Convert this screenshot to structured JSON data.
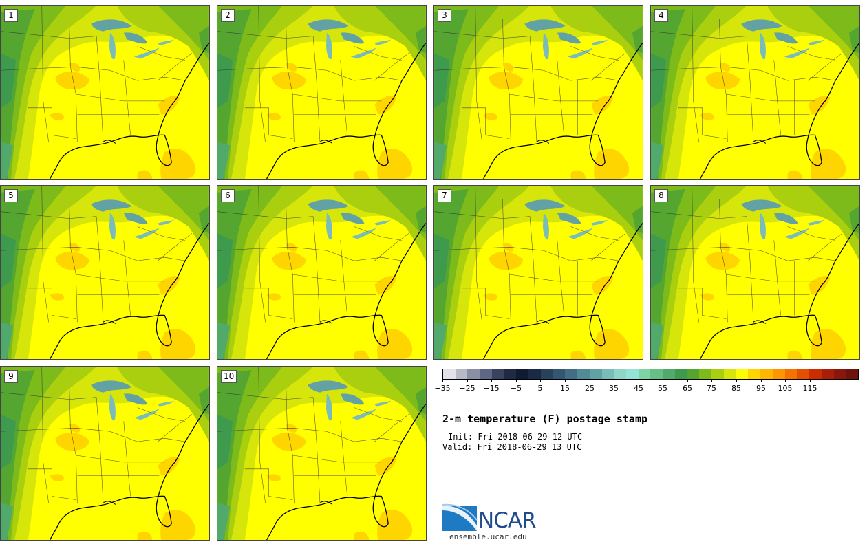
{
  "panels": [
    {
      "number": "1"
    },
    {
      "number": "2"
    },
    {
      "number": "3"
    },
    {
      "number": "4"
    },
    {
      "number": "5"
    },
    {
      "number": "6"
    },
    {
      "number": "7"
    },
    {
      "number": "8"
    },
    {
      "number": "9"
    },
    {
      "number": "10"
    }
  ],
  "colorbar": {
    "colors": [
      "#e2e2e8",
      "#b7b9c6",
      "#8a8fa6",
      "#5f6786",
      "#39425f",
      "#1f2a45",
      "#0f1b33",
      "#1a2a45",
      "#28415c",
      "#335772",
      "#416e85",
      "#528a95",
      "#62a2a5",
      "#79bcba",
      "#8fd6c8",
      "#93e4d4",
      "#7fd4a6",
      "#68bf86",
      "#52a96c",
      "#3e9a4c",
      "#55a630",
      "#7dbb1b",
      "#aacf0f",
      "#d7e60a",
      "#fcfc05",
      "#ffd500",
      "#ffb600",
      "#ff9500",
      "#f57100",
      "#e44f00",
      "#cc2d00",
      "#a81e0a",
      "#8a170c",
      "#6d130c"
    ],
    "tick_labels": [
      "−35",
      "−25",
      "−15",
      "−5",
      "5",
      "15",
      "25",
      "35",
      "45",
      "55",
      "65",
      "75",
      "85",
      "95",
      "105",
      "115"
    ]
  },
  "title": "2-m temperature (F) postage stamp",
  "init": "Init: Fri 2018-06-29 12 UTC",
  "valid": "Valid: Fri 2018-06-29 13 UTC",
  "logo": {
    "name": "NCAR",
    "url": "ensemble.ucar.edu"
  }
}
